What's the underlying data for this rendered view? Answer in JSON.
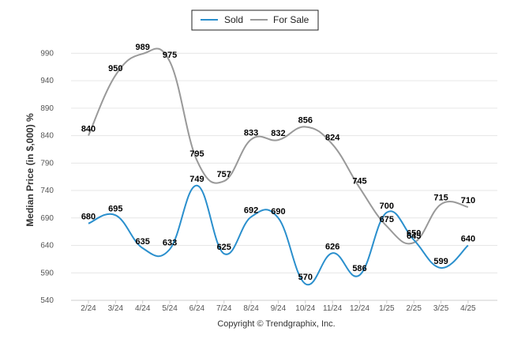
{
  "chart_data": {
    "type": "line",
    "categories": [
      "2/24",
      "3/24",
      "4/24",
      "5/24",
      "6/24",
      "7/24",
      "8/24",
      "9/24",
      "10/24",
      "11/24",
      "12/24",
      "1/25",
      "2/25",
      "3/25",
      "4/25"
    ],
    "series": [
      {
        "name": "Sold",
        "color": "#2a8fcd",
        "values": [
          680,
          695,
          635,
          633,
          749,
          625,
          692,
          690,
          570,
          626,
          586,
          700,
          650,
          599,
          640
        ]
      },
      {
        "name": "For Sale",
        "color": "#999999",
        "values": [
          840,
          950,
          989,
          975,
          795,
          757,
          833,
          832,
          856,
          824,
          745,
          675,
          645,
          715,
          710
        ]
      }
    ],
    "ylabel": "Median Price (in $,000) %",
    "xlabel": "",
    "ylim": [
      540,
      1015
    ],
    "yticks": [
      540,
      590,
      640,
      690,
      740,
      790,
      840,
      890,
      940,
      990
    ],
    "legend": "top-center",
    "grid": true
  },
  "footer": {
    "credit": "Copyright © Trendgraphix, Inc."
  }
}
